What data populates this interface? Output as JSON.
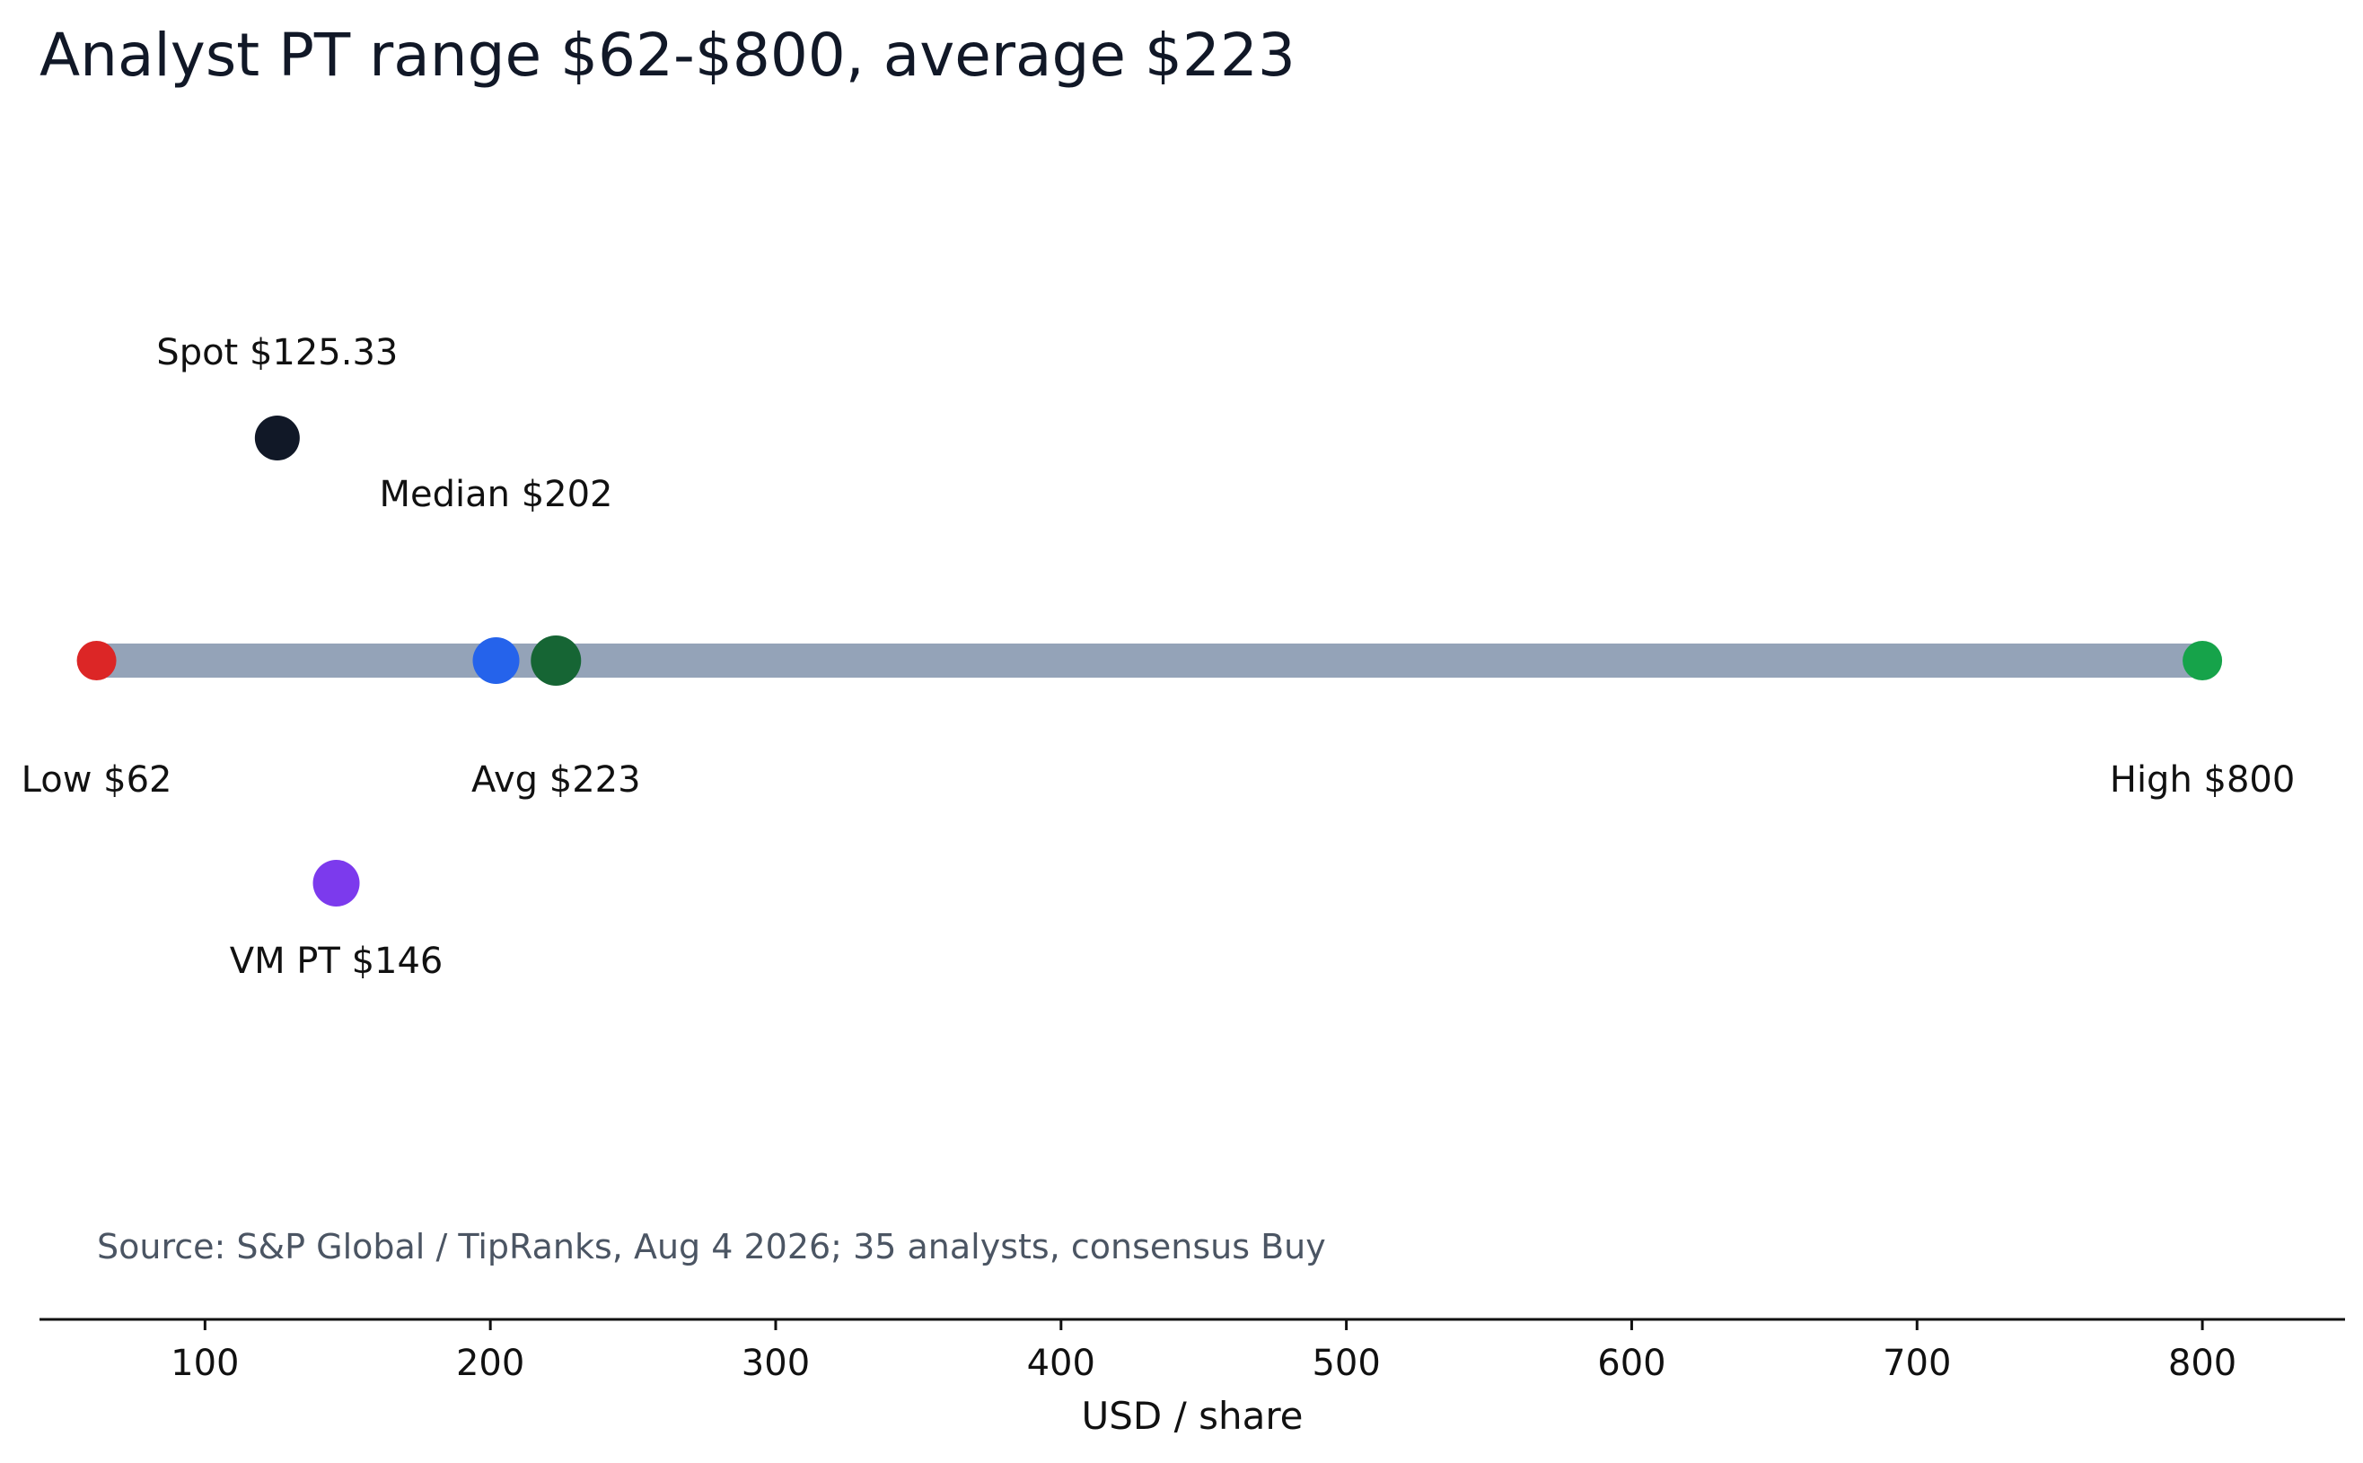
{
  "chart_data": {
    "type": "scatter",
    "title": "Analyst PT range $62-$800, average $223",
    "xlabel": "USD / share",
    "xlim": [
      42,
      850
    ],
    "x_ticks": [
      "100",
      "200",
      "300",
      "400",
      "500",
      "600",
      "700",
      "800"
    ],
    "x_tick_values": [
      100,
      200,
      300,
      400,
      500,
      600,
      700,
      800
    ],
    "range_bar": {
      "low": 62,
      "high": 800,
      "color": "#94a3b8"
    },
    "points": [
      {
        "id": "low",
        "value": 62,
        "label": "Low $62",
        "color": "#dc2626"
      },
      {
        "id": "high",
        "value": 800,
        "label": "High $800",
        "color": "#16a34a"
      },
      {
        "id": "median",
        "value": 202,
        "label": "Median $202",
        "color": "#2563eb"
      },
      {
        "id": "avg",
        "value": 223,
        "label": "Avg $223",
        "color": "#166534"
      },
      {
        "id": "spot",
        "value": 125.33,
        "label": "Spot $125.33",
        "color": "#111827"
      },
      {
        "id": "vm",
        "value": 146,
        "label": "VM PT $146",
        "color": "#7c3aed"
      }
    ],
    "source": "Source: S&P Global / TipRanks, Aug 4 2026; 35 analysts, consensus Buy"
  }
}
